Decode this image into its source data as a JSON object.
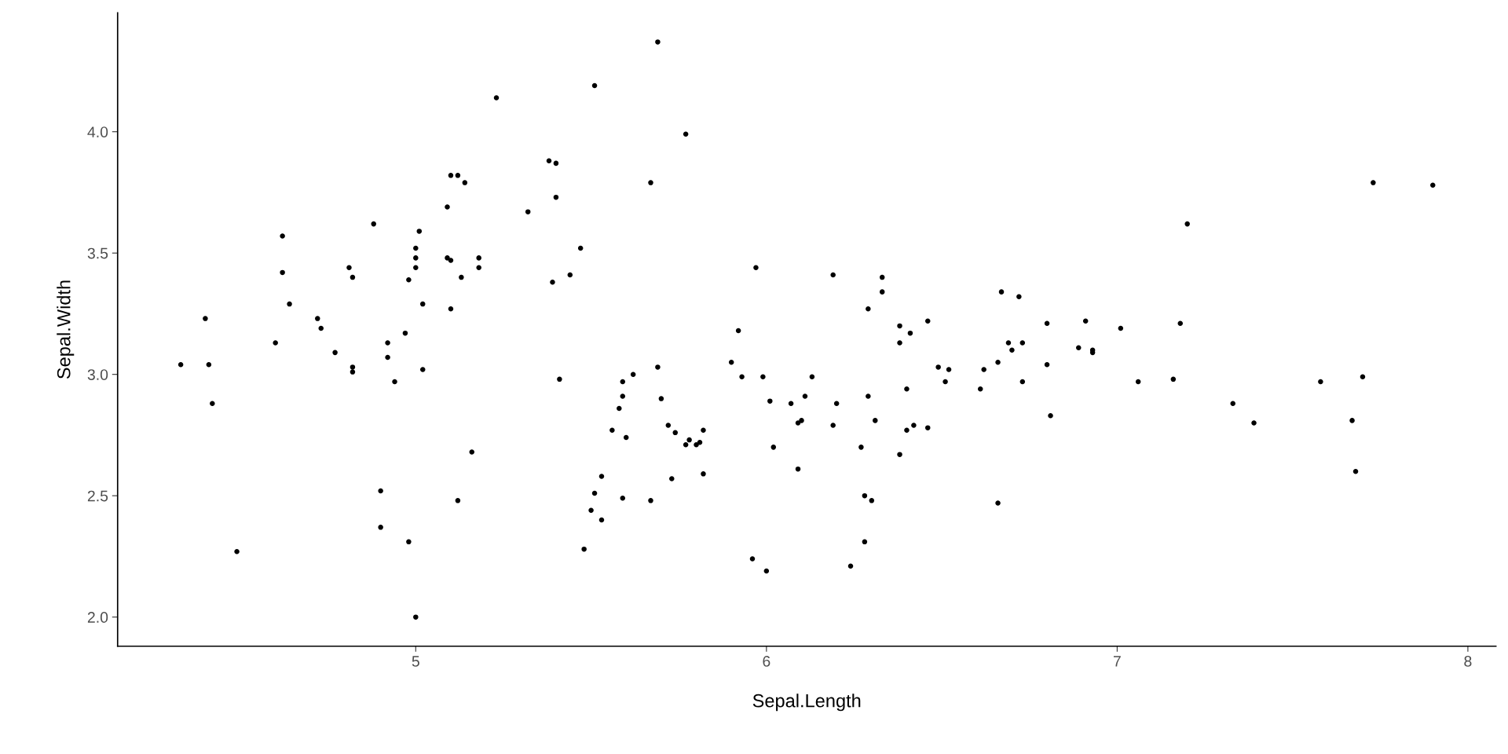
{
  "chart_data": {
    "type": "scatter",
    "xlabel": "Sepal.Length",
    "ylabel": "Sepal.Width",
    "xlim": [
      4.15,
      8.08
    ],
    "ylim": [
      1.88,
      4.49
    ],
    "xticks": [
      5,
      6,
      7,
      8
    ],
    "yticks": [
      {
        "value": 2,
        "label": "2.0"
      },
      {
        "value": 2.5,
        "label": "2.5"
      },
      {
        "value": 3,
        "label": "3.0"
      },
      {
        "value": 3.5,
        "label": "3.5"
      },
      {
        "value": 4,
        "label": "4.0"
      }
    ],
    "grid": false,
    "legend": false,
    "marker": "circle",
    "series": [
      {
        "color": "#000000",
        "x": [
          4.33,
          4.4,
          4.41,
          4.42,
          4.49,
          4.6,
          4.62,
          4.62,
          4.64,
          4.72,
          4.73,
          4.77,
          4.81,
          4.82,
          4.82,
          4.82,
          4.88,
          4.9,
          4.9,
          4.92,
          4.92,
          4.94,
          4.97,
          4.98,
          4.98,
          5.0,
          5.0,
          5.0,
          5.0,
          5.01,
          5.02,
          5.02,
          5.09,
          5.09,
          5.1,
          5.1,
          5.1,
          5.12,
          5.12,
          5.14,
          5.13,
          5.16,
          5.18,
          5.18,
          5.23,
          5.32,
          5.38,
          5.4,
          5.4,
          5.39,
          5.41,
          5.44,
          5.47,
          5.48,
          5.5,
          5.51,
          5.51,
          5.53,
          5.53,
          5.56,
          5.58,
          5.59,
          5.59,
          5.6,
          5.59,
          5.62,
          5.67,
          5.67,
          5.69,
          5.69,
          5.7,
          5.72,
          5.73,
          5.74,
          5.77,
          5.77,
          5.78,
          5.8,
          5.81,
          5.82,
          5.82,
          5.9,
          5.92,
          5.93,
          5.96,
          5.97,
          5.99,
          6.0,
          6.01,
          6.02,
          6.07,
          6.09,
          6.09,
          6.1,
          6.11,
          6.13,
          6.19,
          6.19,
          6.2,
          6.24,
          6.27,
          6.28,
          6.28,
          6.29,
          6.29,
          6.3,
          6.31,
          6.33,
          6.33,
          6.38,
          6.38,
          6.38,
          6.4,
          6.4,
          6.41,
          6.42,
          6.46,
          6.46,
          6.49,
          6.51,
          6.52,
          6.61,
          6.62,
          6.66,
          6.66,
          6.67,
          6.69,
          6.7,
          6.72,
          6.73,
          6.73,
          6.8,
          6.8,
          6.81,
          6.89,
          6.91,
          6.93,
          6.93,
          7.01,
          7.06,
          7.16,
          7.18,
          7.2,
          7.33,
          7.39,
          7.58,
          7.67,
          7.68,
          7.7,
          7.73,
          7.9
        ],
        "values": [
          3.04,
          3.23,
          3.04,
          2.88,
          2.27,
          3.13,
          3.57,
          3.42,
          3.29,
          3.23,
          3.19,
          3.09,
          3.44,
          3.4,
          3.03,
          3.01,
          3.62,
          2.52,
          2.37,
          3.13,
          3.07,
          2.97,
          3.17,
          3.39,
          2.31,
          3.52,
          3.48,
          3.44,
          2.0,
          3.59,
          3.29,
          3.02,
          3.69,
          3.48,
          3.47,
          3.27,
          3.82,
          3.82,
          2.48,
          3.79,
          3.4,
          2.68,
          3.48,
          3.44,
          4.14,
          3.67,
          3.88,
          3.87,
          3.73,
          3.38,
          2.98,
          3.41,
          3.52,
          2.28,
          2.44,
          2.51,
          4.19,
          2.58,
          2.4,
          2.77,
          2.86,
          2.91,
          2.97,
          2.74,
          2.49,
          3.0,
          2.48,
          3.79,
          3.03,
          4.37,
          2.9,
          2.79,
          2.57,
          2.76,
          3.99,
          2.71,
          2.73,
          2.71,
          2.72,
          2.77,
          2.59,
          3.05,
          3.18,
          2.99,
          2.24,
          3.44,
          2.99,
          2.19,
          2.89,
          2.7,
          2.88,
          2.61,
          2.8,
          2.81,
          2.91,
          2.99,
          3.41,
          2.79,
          2.88,
          2.21,
          2.7,
          2.5,
          2.31,
          3.27,
          2.91,
          2.48,
          2.81,
          3.4,
          3.34,
          3.13,
          3.2,
          2.67,
          2.77,
          2.94,
          3.17,
          2.79,
          3.22,
          2.78,
          3.03,
          2.97,
          3.02,
          2.94,
          3.02,
          2.47,
          3.05,
          3.34,
          3.13,
          3.1,
          3.32,
          3.13,
          2.97,
          3.21,
          3.04,
          2.83,
          3.11,
          3.22,
          3.1,
          3.09,
          3.19,
          2.97,
          2.98,
          3.21,
          3.62,
          2.88,
          2.8,
          2.97,
          2.81,
          2.6,
          2.99,
          3.79,
          3.78
        ]
      }
    ]
  }
}
